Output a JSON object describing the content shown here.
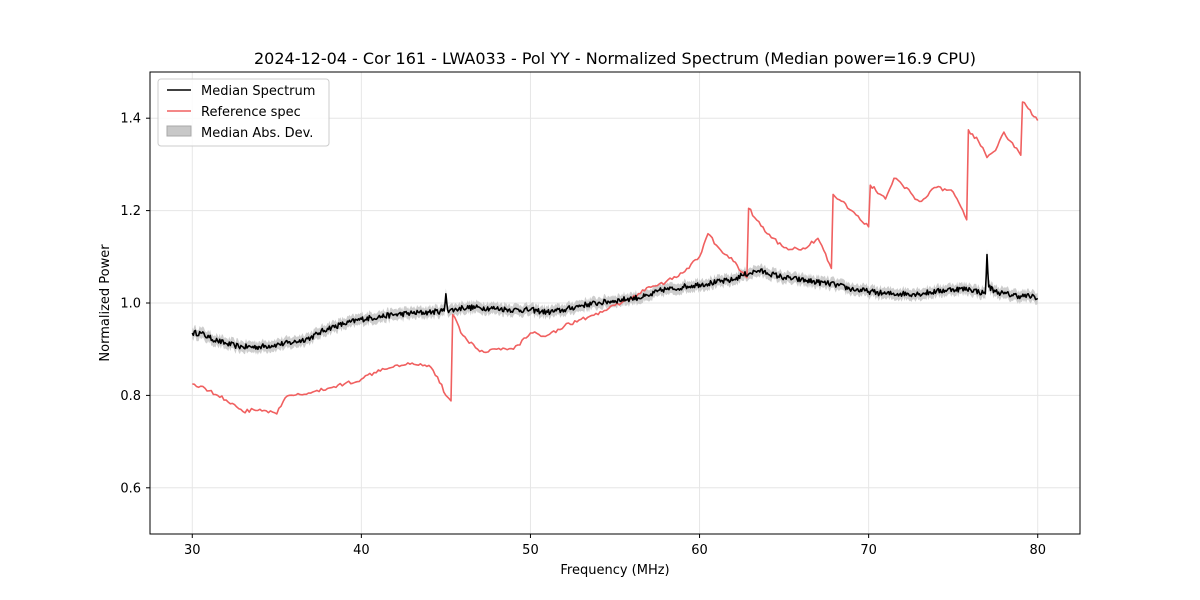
{
  "chart_data": {
    "type": "line",
    "title": "2024-12-04 - Cor 161 - LWA033 - Pol YY - Normalized Spectrum (Median power=16.9 CPU)",
    "xlabel": "Frequency (MHz)",
    "ylabel": "Normalized Power",
    "xlim": [
      27.5,
      82.5
    ],
    "ylim": [
      0.5,
      1.5
    ],
    "xticks": [
      30,
      40,
      50,
      60,
      70,
      80
    ],
    "yticks": [
      0.6,
      0.8,
      1.0,
      1.2,
      1.4
    ],
    "xtick_labels": [
      "30",
      "40",
      "50",
      "60",
      "70",
      "80"
    ],
    "ytick_labels": [
      "0.6",
      "0.8",
      "1.0",
      "1.2",
      "1.4"
    ],
    "grid": true,
    "legend": {
      "placement": "upper-left",
      "entries": [
        {
          "label": "Median Spectrum",
          "kind": "line",
          "color": "#000000"
        },
        {
          "label": "Reference spec",
          "kind": "line",
          "color": "#f06060"
        },
        {
          "label": "Median Abs. Dev.",
          "kind": "band",
          "color": "#c8c8c8"
        }
      ]
    },
    "series": [
      {
        "name": "Median Spectrum",
        "color": "#000000",
        "x": [
          30,
          30.5,
          31,
          31.5,
          32,
          32.5,
          33,
          34,
          35,
          36,
          37,
          37.5,
          38,
          39,
          40,
          41,
          42,
          43,
          44,
          44.9,
          45.0,
          45.1,
          45.5,
          46,
          47,
          48,
          49,
          50,
          51,
          52,
          53,
          54,
          55,
          56,
          57,
          57.5,
          58,
          58.5,
          59,
          60,
          61,
          62,
          62.5,
          63,
          63.5,
          64,
          65,
          66,
          67,
          68,
          69,
          70,
          71,
          72,
          73,
          74,
          75,
          76,
          76.9,
          77.0,
          77.1,
          77.5,
          78,
          79,
          79.5,
          80
        ],
        "y": [
          0.935,
          0.935,
          0.925,
          0.918,
          0.912,
          0.908,
          0.905,
          0.905,
          0.91,
          0.915,
          0.925,
          0.935,
          0.945,
          0.955,
          0.965,
          0.97,
          0.975,
          0.978,
          0.98,
          0.983,
          1.02,
          0.985,
          0.985,
          0.99,
          0.99,
          0.988,
          0.985,
          0.985,
          0.98,
          0.985,
          0.995,
          1.0,
          1.005,
          1.01,
          1.015,
          1.025,
          1.03,
          1.03,
          1.035,
          1.04,
          1.045,
          1.05,
          1.06,
          1.065,
          1.07,
          1.065,
          1.055,
          1.05,
          1.045,
          1.04,
          1.03,
          1.025,
          1.02,
          1.02,
          1.02,
          1.025,
          1.03,
          1.03,
          1.02,
          1.105,
          1.035,
          1.025,
          1.02,
          1.015,
          1.015,
          1.01
        ],
        "mad": 0.012
      },
      {
        "name": "Reference spec",
        "color": "#f06060",
        "x": [
          30,
          30.5,
          31,
          31.5,
          32,
          32.5,
          33,
          34,
          35,
          35.5,
          36,
          37,
          38,
          39,
          40,
          41,
          42,
          43,
          44,
          44.5,
          45,
          45.3,
          45.4,
          46,
          47,
          48,
          49,
          50,
          51,
          52,
          53,
          54,
          55,
          56,
          57,
          58,
          59,
          60,
          60.5,
          61,
          62,
          62.8,
          62.9,
          64,
          65,
          66,
          67,
          67.8,
          67.9,
          69,
          70,
          70.1,
          71,
          71.5,
          72,
          73,
          74,
          75,
          75.8,
          75.9,
          76.5,
          77,
          77.5,
          78,
          79,
          79.1,
          80
        ],
        "y": [
          0.825,
          0.82,
          0.81,
          0.8,
          0.79,
          0.78,
          0.765,
          0.77,
          0.76,
          0.795,
          0.8,
          0.805,
          0.815,
          0.825,
          0.835,
          0.855,
          0.865,
          0.87,
          0.865,
          0.84,
          0.8,
          0.788,
          0.975,
          0.93,
          0.895,
          0.9,
          0.9,
          0.935,
          0.93,
          0.95,
          0.965,
          0.975,
          0.995,
          1.01,
          1.035,
          1.045,
          1.065,
          1.1,
          1.15,
          1.125,
          1.09,
          1.055,
          1.205,
          1.15,
          1.12,
          1.115,
          1.14,
          1.075,
          1.235,
          1.2,
          1.165,
          1.255,
          1.225,
          1.27,
          1.255,
          1.22,
          1.25,
          1.24,
          1.18,
          1.375,
          1.35,
          1.315,
          1.33,
          1.37,
          1.32,
          1.435,
          1.395
        ]
      }
    ]
  }
}
